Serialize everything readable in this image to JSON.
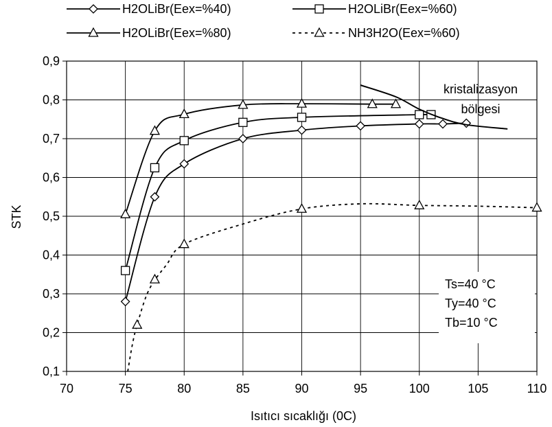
{
  "chart_data": {
    "type": "line",
    "xlabel": "Isıtıcı sıcaklığı (0C)",
    "ylabel": "STK",
    "xlim": [
      70,
      110
    ],
    "ylim": [
      0.1,
      0.9
    ],
    "x_ticks": [
      "70",
      "75",
      "80",
      "85",
      "90",
      "95",
      "100",
      "105",
      "110"
    ],
    "y_ticks": [
      "0,1",
      "0,2",
      "0,3",
      "0,4",
      "0,5",
      "0,6",
      "0,7",
      "0,8",
      "0,9"
    ],
    "grid": "horizontal-and-vertical",
    "legend_position": "top",
    "series": [
      {
        "name": "H2OLiBr(Eex=%40)",
        "marker": "diamond",
        "line_style": "solid",
        "points": [
          [
            75,
            0.28
          ],
          [
            77.5,
            0.55
          ],
          [
            80,
            0.635
          ],
          [
            85,
            0.7
          ],
          [
            90,
            0.722
          ],
          [
            95,
            0.733
          ],
          [
            100,
            0.738
          ],
          [
            102,
            0.738
          ],
          [
            104,
            0.74
          ]
        ]
      },
      {
        "name": "H2OLiBr(Eex=%60)",
        "marker": "square",
        "line_style": "solid",
        "points": [
          [
            75,
            0.36
          ],
          [
            77.5,
            0.625
          ],
          [
            80,
            0.695
          ],
          [
            85,
            0.742
          ],
          [
            90,
            0.755
          ],
          [
            100,
            0.762
          ],
          [
            101,
            0.762
          ]
        ]
      },
      {
        "name": "H2OLiBr(Eex=%80)",
        "marker": "triangle",
        "line_style": "solid",
        "points": [
          [
            75,
            0.505
          ],
          [
            77.5,
            0.72
          ],
          [
            80,
            0.763
          ],
          [
            85,
            0.787
          ],
          [
            90,
            0.79
          ],
          [
            96,
            0.789
          ],
          [
            98,
            0.789
          ]
        ]
      },
      {
        "name": "NH3H2O(Eex=%60)",
        "marker": "triangle",
        "line_style": "dashed",
        "points": [
          [
            76,
            0.22
          ],
          [
            77.5,
            0.337
          ],
          [
            80,
            0.428
          ],
          [
            90,
            0.519
          ],
          [
            100,
            0.528
          ],
          [
            110,
            0.522
          ]
        ],
        "curve": [
          [
            75.2,
            0.1
          ],
          [
            75.6,
            0.17
          ],
          [
            76,
            0.22
          ],
          [
            77,
            0.31
          ],
          [
            78.5,
            0.375
          ],
          [
            80,
            0.428
          ],
          [
            85,
            0.48
          ],
          [
            90,
            0.519
          ],
          [
            95,
            0.532
          ],
          [
            100,
            0.528
          ],
          [
            105,
            0.526
          ],
          [
            110,
            0.522
          ]
        ]
      }
    ],
    "boundary_curve": {
      "label": [
        "kristalizasyon",
        "bölgesi"
      ],
      "points": [
        [
          95,
          0.838
        ],
        [
          98,
          0.808
        ],
        [
          100,
          0.776
        ],
        [
          102,
          0.752
        ],
        [
          104,
          0.736
        ],
        [
          107.5,
          0.725
        ]
      ]
    },
    "annotation": [
      "Ts=40 °C",
      "Ty=40 °C",
      "Tb=10 °C"
    ]
  }
}
